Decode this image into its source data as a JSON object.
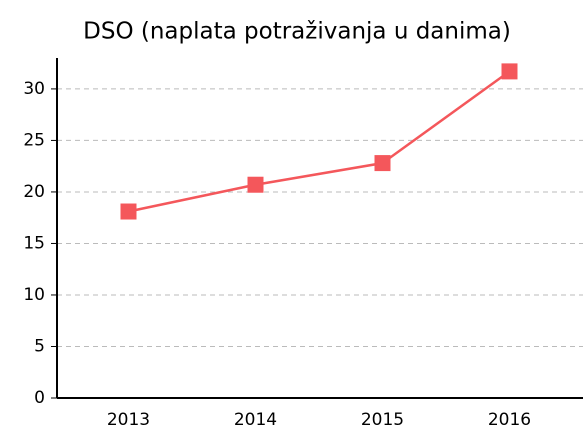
{
  "chart_data": {
    "type": "line",
    "title": "DSO (naplata potraživanja u danima)",
    "categories": [
      "2013",
      "2014",
      "2015",
      "2016"
    ],
    "series": [
      {
        "name": "DSO",
        "color": "#f4575b",
        "values": [
          18.1,
          20.7,
          22.8,
          31.7
        ]
      }
    ],
    "ylim": [
      0,
      33
    ],
    "yticks": [
      0,
      5,
      10,
      15,
      20,
      25,
      30
    ],
    "grid": true
  }
}
